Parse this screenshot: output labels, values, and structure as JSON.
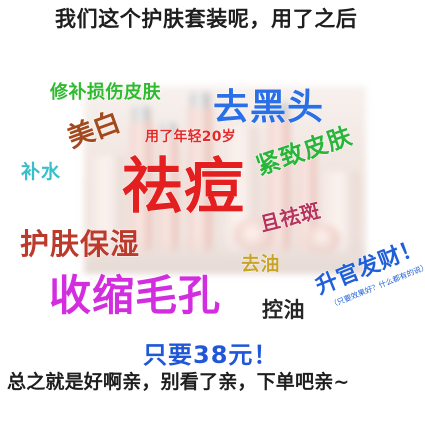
{
  "header": "我们这个护肤套装呢，用了之后",
  "tags": {
    "repair": "修补损伤皮肤",
    "blackhead": "去黑头",
    "whitening": "美白",
    "younger": "用了年轻20岁",
    "hydrate": "补水",
    "acne": "祛痘",
    "firming": "紧致皮肤",
    "spot": "且祛斑",
    "moisturize": "护肤保湿",
    "deoil": "去油",
    "fortune": "升官发财！",
    "fortune_note": "（只要效果好？什么都有的说）",
    "pores": "收缩毛孔",
    "oil_control": "控油"
  },
  "price": "只要38元！",
  "footer": "总之就是好啊亲，别看了亲，下单吧亲~",
  "colors": {
    "background": "#ffffff",
    "acne": "#e31f1f",
    "blackhead": "#2a6fe6",
    "pores": "#d32de0",
    "price": "#1f57d8"
  }
}
